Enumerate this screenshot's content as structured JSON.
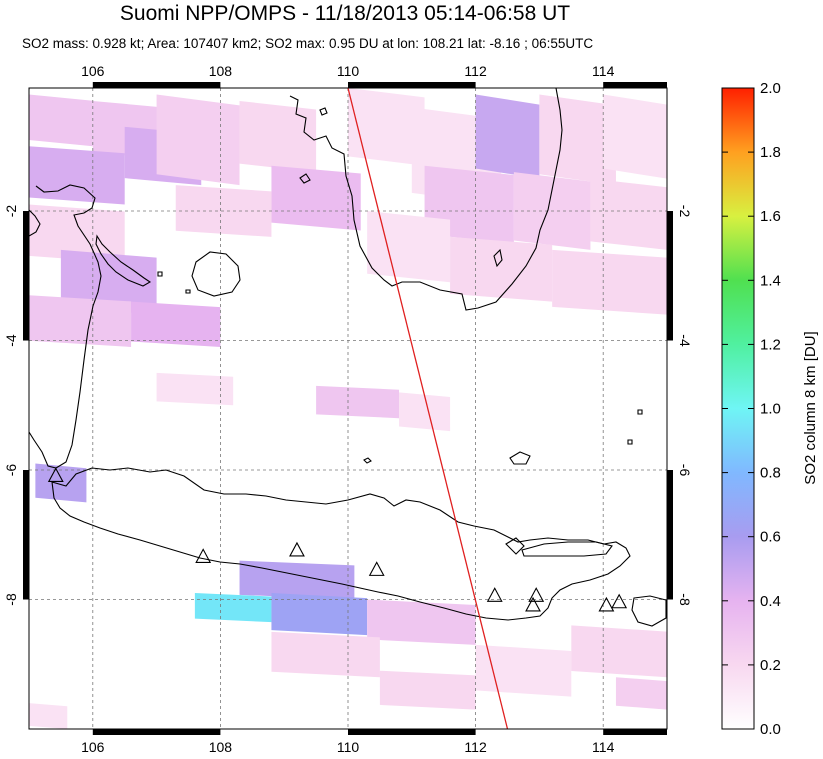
{
  "title": "Suomi NPP/OMPS - 11/18/2013 05:14-06:58 UT",
  "subtitle": {
    "so2_mass": "SO2 mass: 0.928 kt",
    "area": "Area: 107407 km2",
    "so2_max": "SO2 max: 0.95 DU at lon: 108.21 lat: -8.16",
    "time": "06:55UTC"
  },
  "map": {
    "lon_range": [
      105,
      115
    ],
    "lat_range": [
      -10,
      -0.1
    ],
    "lon_ticks": [
      "106",
      "108",
      "110",
      "112",
      "114"
    ],
    "lat_ticks": [
      "-2",
      "-4",
      "-6",
      "-8"
    ],
    "lon_tick_values": [
      106,
      108,
      110,
      112,
      114
    ],
    "lat_tick_values": [
      -2,
      -4,
      -6,
      -8
    ],
    "grid": "dashed",
    "orbit_track": {
      "from": [
        110.0,
        -0.1
      ],
      "to": [
        112.5,
        -10.0
      ],
      "color": "#e02020"
    },
    "volcanoes": [
      {
        "lon": 105.42,
        "lat": -6.1
      },
      {
        "lon": 107.73,
        "lat": -7.35
      },
      {
        "lon": 109.2,
        "lat": -7.25
      },
      {
        "lon": 110.45,
        "lat": -7.55
      },
      {
        "lon": 112.3,
        "lat": -7.95
      },
      {
        "lon": 112.95,
        "lat": -7.95
      },
      {
        "lon": 112.9,
        "lat": -8.1
      },
      {
        "lon": 114.05,
        "lat": -8.1
      },
      {
        "lon": 114.25,
        "lat": -8.05
      }
    ],
    "so2_pixels": [
      {
        "lon0": 105.0,
        "lat0": -0.2,
        "lon1": 106.0,
        "lat1": -1.0,
        "du": 0.3
      },
      {
        "lon0": 106.0,
        "lat0": -0.3,
        "lon1": 107.2,
        "lat1": -1.2,
        "du": 0.3
      },
      {
        "lon0": 106.5,
        "lat0": -0.7,
        "lon1": 107.7,
        "lat1": -1.6,
        "du": 0.45
      },
      {
        "lon0": 105.0,
        "lat0": -1.0,
        "lon1": 106.5,
        "lat1": -1.9,
        "du": 0.45
      },
      {
        "lon0": 107.0,
        "lat0": -0.2,
        "lon1": 108.3,
        "lat1": -1.6,
        "du": 0.25
      },
      {
        "lon0": 108.3,
        "lat0": -0.3,
        "lon1": 109.5,
        "lat1": -1.4,
        "du": 0.2
      },
      {
        "lon0": 108.8,
        "lat0": -1.3,
        "lon1": 110.2,
        "lat1": -2.3,
        "du": 0.35
      },
      {
        "lon0": 107.3,
        "lat0": -1.6,
        "lon1": 108.8,
        "lat1": -2.4,
        "du": 0.2
      },
      {
        "lon0": 105.0,
        "lat0": -1.9,
        "lon1": 106.5,
        "lat1": -2.8,
        "du": 0.2
      },
      {
        "lon0": 110.0,
        "lat0": -0.1,
        "lon1": 111.2,
        "lat1": -1.3,
        "du": 0.15
      },
      {
        "lon0": 111.0,
        "lat0": -0.4,
        "lon1": 112.4,
        "lat1": -1.9,
        "du": 0.15
      },
      {
        "lon0": 112.0,
        "lat0": -0.2,
        "lon1": 113.0,
        "lat1": -1.5,
        "du": 0.5
      },
      {
        "lon0": 113.0,
        "lat0": -0.2,
        "lon1": 114.2,
        "lat1": -1.6,
        "du": 0.2
      },
      {
        "lon0": 111.2,
        "lat0": -1.3,
        "lon1": 112.6,
        "lat1": -2.5,
        "du": 0.3
      },
      {
        "lon0": 112.6,
        "lat0": -1.4,
        "lon1": 113.8,
        "lat1": -2.6,
        "du": 0.25
      },
      {
        "lon0": 113.8,
        "lat0": -1.5,
        "lon1": 115.0,
        "lat1": -2.6,
        "du": 0.2
      },
      {
        "lon0": 114.0,
        "lat0": -0.2,
        "lon1": 115.0,
        "lat1": -1.5,
        "du": 0.15
      },
      {
        "lon0": 110.3,
        "lat0": -2.0,
        "lon1": 111.6,
        "lat1": -3.1,
        "du": 0.15
      },
      {
        "lon0": 111.6,
        "lat0": -2.4,
        "lon1": 113.2,
        "lat1": -3.4,
        "du": 0.2
      },
      {
        "lon0": 113.2,
        "lat0": -2.6,
        "lon1": 115.0,
        "lat1": -3.6,
        "du": 0.2
      },
      {
        "lon0": 105.5,
        "lat0": -2.6,
        "lon1": 107.0,
        "lat1": -3.6,
        "du": 0.45
      },
      {
        "lon0": 105.0,
        "lat0": -3.3,
        "lon1": 106.6,
        "lat1": -4.1,
        "du": 0.3
      },
      {
        "lon0": 106.6,
        "lat0": -3.4,
        "lon1": 108.0,
        "lat1": -4.1,
        "du": 0.4
      },
      {
        "lon0": 107.0,
        "lat0": -4.5,
        "lon1": 108.2,
        "lat1": -5.0,
        "du": 0.15
      },
      {
        "lon0": 109.5,
        "lat0": -4.7,
        "lon1": 110.8,
        "lat1": -5.2,
        "du": 0.3
      },
      {
        "lon0": 110.8,
        "lat0": -4.8,
        "lon1": 111.6,
        "lat1": -5.4,
        "du": 0.15
      },
      {
        "lon0": 105.1,
        "lat0": -5.9,
        "lon1": 105.9,
        "lat1": -6.5,
        "du": 0.55
      },
      {
        "lon0": 108.3,
        "lat0": -7.4,
        "lon1": 110.1,
        "lat1": -8.0,
        "du": 0.55
      },
      {
        "lon0": 107.6,
        "lat0": -7.9,
        "lon1": 108.8,
        "lat1": -8.35,
        "du": 0.95
      },
      {
        "lon0": 108.8,
        "lat0": -7.9,
        "lon1": 110.3,
        "lat1": -8.55,
        "du": 0.65
      },
      {
        "lon0": 110.3,
        "lat0": -8.0,
        "lon1": 112.0,
        "lat1": -8.7,
        "du": 0.3
      },
      {
        "lon0": 108.8,
        "lat0": -8.5,
        "lon1": 110.5,
        "lat1": -9.2,
        "du": 0.2
      },
      {
        "lon0": 110.5,
        "lat0": -9.1,
        "lon1": 112.0,
        "lat1": -9.7,
        "du": 0.2
      },
      {
        "lon0": 112.0,
        "lat0": -8.7,
        "lon1": 113.5,
        "lat1": -9.5,
        "du": 0.15
      },
      {
        "lon0": 113.5,
        "lat0": -8.4,
        "lon1": 115.0,
        "lat1": -9.2,
        "du": 0.2
      },
      {
        "lon0": 114.2,
        "lat0": -9.2,
        "lon1": 115.0,
        "lat1": -9.7,
        "du": 0.25
      },
      {
        "lon0": 105.0,
        "lat0": -9.6,
        "lon1": 105.6,
        "lat1": -10.0,
        "du": 0.15
      }
    ]
  },
  "colorbar": {
    "label": "SO2 column 8 km [DU]",
    "min": 0.0,
    "max": 2.0,
    "ticks": [
      "0.0",
      "0.2",
      "0.4",
      "0.6",
      "0.8",
      "1.0",
      "1.2",
      "1.4",
      "1.6",
      "1.8",
      "2.0"
    ],
    "tick_values": [
      0.0,
      0.2,
      0.4,
      0.6,
      0.8,
      1.0,
      1.2,
      1.4,
      1.6,
      1.8,
      2.0
    ]
  }
}
